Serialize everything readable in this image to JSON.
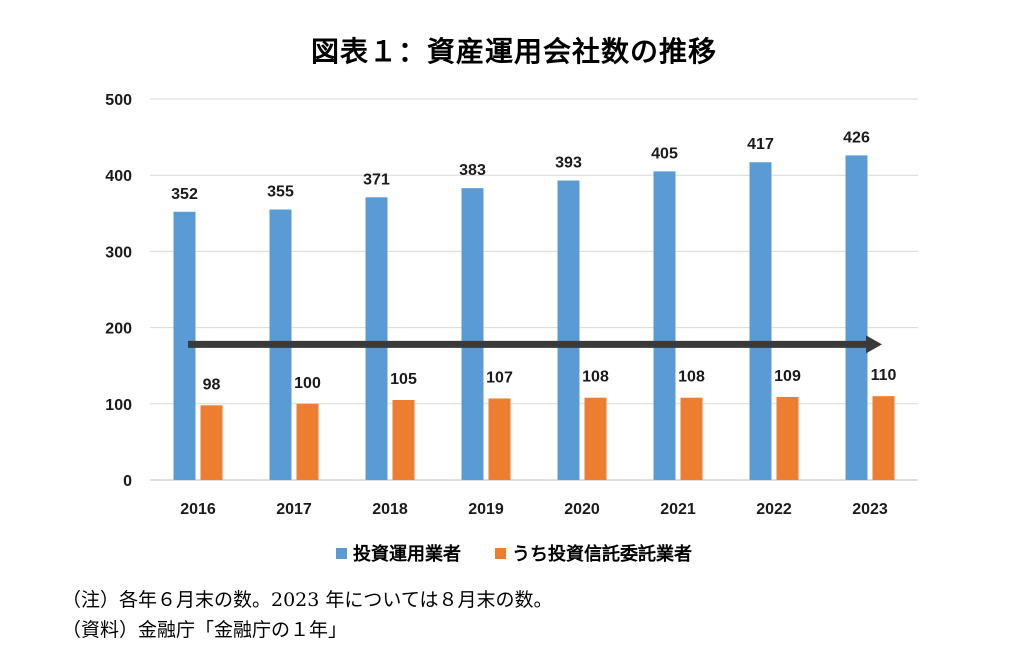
{
  "chart_data": {
    "type": "bar",
    "title": "図表１：資産運用会社数の推移",
    "categories": [
      "2016",
      "2017",
      "2018",
      "2019",
      "2020",
      "2021",
      "2022",
      "2023"
    ],
    "series": [
      {
        "name": "投資運用業者",
        "color": "#5B9BD5",
        "values": [
          352,
          355,
          371,
          383,
          393,
          405,
          417,
          426
        ]
      },
      {
        "name": "うち投資信託委託業者",
        "color": "#ED7D31",
        "values": [
          98,
          100,
          105,
          107,
          108,
          108,
          109,
          110
        ]
      }
    ],
    "ylim": [
      0,
      500
    ],
    "yticks": [
      "0",
      "100",
      "200",
      "300",
      "400",
      "500"
    ],
    "grid": true,
    "legend_position": "bottom",
    "annotation": {
      "type": "arrow",
      "y": 178,
      "color": "#3a3a3a"
    }
  },
  "notes": {
    "note": "（注）各年６月末の数。2023 年については８月末の数。",
    "source": "（資料）金融庁「金融庁の１年」"
  }
}
